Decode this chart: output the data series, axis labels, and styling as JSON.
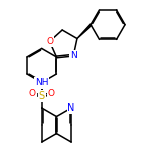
{
  "bg_color": "#ffffff",
  "bond_color": "#000000",
  "atom_colors": {
    "N": "#0000ff",
    "O": "#ff0000",
    "S": "#ccaa00",
    "C": "#000000"
  },
  "bond_lw": 1.1,
  "font_size": 6.5,
  "fig_size": [
    1.52,
    1.52
  ],
  "dpi": 100
}
